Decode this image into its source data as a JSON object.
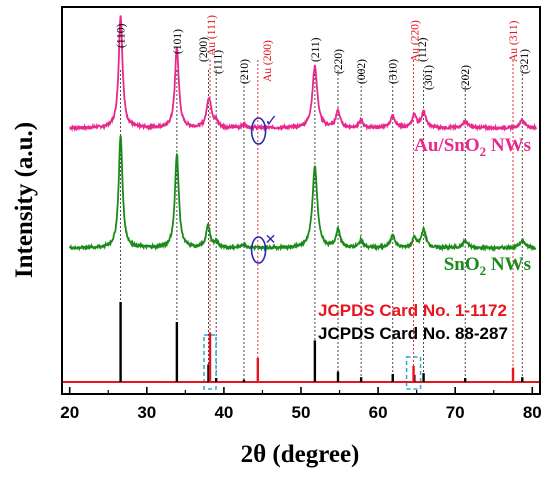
{
  "chart_data": {
    "type": "line",
    "xlabel": "2θ (degree)",
    "ylabel": "Intensity (a.u.)",
    "xlim": [
      19,
      81
    ],
    "x_ticks": [
      20,
      30,
      40,
      50,
      60,
      70,
      80
    ],
    "y_ticks_shown": false,
    "colors": {
      "au_sno2": "#e8288c",
      "sno2": "#1a8a1a",
      "jcpds_sno2": "#000000",
      "jcpds_au": "#e8141e",
      "baseline": "#e8141e",
      "marker": "#2a2ab0",
      "dashed_box": "#29a8d8"
    },
    "series": [
      {
        "name": "Au/SnO₂ NWs",
        "label_parts": [
          "Au/SnO",
          "2",
          " NWs"
        ],
        "offset": 0.62,
        "amplitude": 0.22,
        "noise": 0.012,
        "peaks": [
          {
            "x": 26.6,
            "h": 1.0,
            "w": 0.3
          },
          {
            "x": 33.9,
            "h": 0.72,
            "w": 0.3
          },
          {
            "x": 38.0,
            "h": 0.22,
            "w": 0.32
          },
          {
            "x": 38.3,
            "h": 0.08,
            "w": 0.3
          },
          {
            "x": 39.0,
            "h": 0.05,
            "w": 0.3
          },
          {
            "x": 42.6,
            "h": 0.03,
            "w": 0.35
          },
          {
            "x": 51.8,
            "h": 0.55,
            "w": 0.38
          },
          {
            "x": 54.8,
            "h": 0.15,
            "w": 0.32
          },
          {
            "x": 57.8,
            "h": 0.07,
            "w": 0.3
          },
          {
            "x": 61.9,
            "h": 0.11,
            "w": 0.35
          },
          {
            "x": 64.7,
            "h": 0.12,
            "w": 0.3
          },
          {
            "x": 65.9,
            "h": 0.14,
            "w": 0.35
          },
          {
            "x": 71.3,
            "h": 0.06,
            "w": 0.4
          },
          {
            "x": 78.7,
            "h": 0.07,
            "w": 0.4
          }
        ]
      },
      {
        "name": "SnO₂ NWs",
        "label_parts": [
          "SnO",
          "2",
          " NWs"
        ],
        "offset": 0.0,
        "amplitude": 0.25,
        "noise": 0.012,
        "peaks": [
          {
            "x": 26.6,
            "h": 1.0,
            "w": 0.3
          },
          {
            "x": 33.9,
            "h": 0.84,
            "w": 0.3
          },
          {
            "x": 37.95,
            "h": 0.2,
            "w": 0.3
          },
          {
            "x": 39.0,
            "h": 0.05,
            "w": 0.3
          },
          {
            "x": 42.6,
            "h": 0.03,
            "w": 0.35
          },
          {
            "x": 51.8,
            "h": 0.72,
            "w": 0.38
          },
          {
            "x": 54.8,
            "h": 0.16,
            "w": 0.32
          },
          {
            "x": 57.8,
            "h": 0.07,
            "w": 0.3
          },
          {
            "x": 61.9,
            "h": 0.11,
            "w": 0.35
          },
          {
            "x": 64.7,
            "h": 0.09,
            "w": 0.3
          },
          {
            "x": 65.9,
            "h": 0.16,
            "w": 0.35
          },
          {
            "x": 71.3,
            "h": 0.06,
            "w": 0.4
          },
          {
            "x": 78.7,
            "h": 0.07,
            "w": 0.4
          }
        ]
      }
    ],
    "reference_sticks": [
      {
        "card": "SnO₂",
        "color": "#000000",
        "sticks": [
          {
            "x": 26.6,
            "h": 1.0
          },
          {
            "x": 33.9,
            "h": 0.75
          },
          {
            "x": 38.0,
            "h": 0.22
          },
          {
            "x": 39.0,
            "h": 0.05
          },
          {
            "x": 42.6,
            "h": 0.03
          },
          {
            "x": 51.8,
            "h": 0.52
          },
          {
            "x": 54.8,
            "h": 0.13
          },
          {
            "x": 57.8,
            "h": 0.06
          },
          {
            "x": 61.9,
            "h": 0.1
          },
          {
            "x": 64.7,
            "h": 0.09
          },
          {
            "x": 65.9,
            "h": 0.11
          },
          {
            "x": 71.3,
            "h": 0.05
          },
          {
            "x": 78.7,
            "h": 0.06
          }
        ]
      },
      {
        "card": "Au",
        "color": "#e8141e",
        "sticks": [
          {
            "x": 38.2,
            "h": 0.62
          },
          {
            "x": 44.4,
            "h": 0.3
          },
          {
            "x": 64.6,
            "h": 0.2
          },
          {
            "x": 77.5,
            "h": 0.18
          }
        ]
      }
    ],
    "peak_labels": [
      {
        "text": "(110)",
        "x": 26.6,
        "color": "#000000",
        "level": 0
      },
      {
        "text": "(101)",
        "x": 33.9,
        "color": "#000000",
        "level": 1
      },
      {
        "text": "(200)",
        "x": 37.3,
        "color": "#000000",
        "level": 2
      },
      {
        "text": "Au (111)",
        "x": 38.3,
        "color": "#e8141e",
        "level": 0
      },
      {
        "text": "(111)",
        "x": 39.2,
        "color": "#000000",
        "level": 3
      },
      {
        "text": "(210)",
        "x": 42.6,
        "color": "#000000",
        "level": 4
      },
      {
        "text": "Au (200)",
        "x": 45.6,
        "color": "#e8141e",
        "level": 3
      },
      {
        "text": "(211)",
        "x": 51.8,
        "color": "#000000",
        "level": 2
      },
      {
        "text": "(220)",
        "x": 54.8,
        "color": "#000000",
        "level": 3
      },
      {
        "text": "(002)",
        "x": 57.8,
        "color": "#000000",
        "level": 4
      },
      {
        "text": "(310)",
        "x": 61.9,
        "color": "#000000",
        "level": 4
      },
      {
        "text": "Au (220)",
        "x": 64.7,
        "color": "#e8141e",
        "level": 1
      },
      {
        "text": "(112)",
        "x": 65.7,
        "color": "#000000",
        "level": 2
      },
      {
        "text": "(301)",
        "x": 66.5,
        "color": "#000000",
        "level": 5
      },
      {
        "text": "(202)",
        "x": 71.3,
        "color": "#000000",
        "level": 5
      },
      {
        "text": "Au (311)",
        "x": 77.5,
        "color": "#e8141e",
        "level": 1
      },
      {
        "text": "(321)",
        "x": 78.9,
        "color": "#000000",
        "level": 3
      }
    ],
    "card_labels": [
      {
        "text": "JCPDS Card No. 1-1172",
        "color": "#e8141e"
      },
      {
        "text": "JCPDS Card No. 88-287",
        "color": "#000000"
      }
    ],
    "annotations": [
      {
        "type": "ellipse-check",
        "x": 44.5,
        "series": "Au/SnO₂ NWs",
        "mark": "✓"
      },
      {
        "type": "ellipse-cross",
        "x": 44.5,
        "series": "SnO₂ NWs",
        "mark": "✕"
      }
    ],
    "grid": false,
    "legend": "inline labels at right"
  }
}
